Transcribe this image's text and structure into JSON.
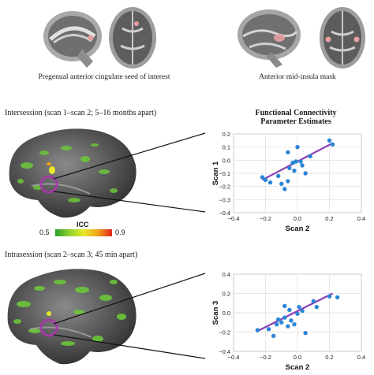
{
  "top": {
    "seed_caption": "Pregenual anterior cingulate seed of interest",
    "mask_caption": "Anterior mid-insula mask"
  },
  "panels": {
    "intersession_title": "Intersession (scan 1–scan 2; 5–16 months apart)",
    "intrasession_title": "Intrasession (scan 2–scan 3; 45 min apart)",
    "fc_title_line1": "Functional Connectivity",
    "fc_title_line2": "Parameter Estimates"
  },
  "colorbar": {
    "label": "ICC",
    "min_label": "0.5",
    "max_label": "0.9",
    "colors": [
      "#2e9e2e",
      "#8fd12e",
      "#e8e82a",
      "#f2a21c",
      "#e0241c"
    ]
  },
  "colors": {
    "points": "#2a86d6",
    "fit_line": "#8a3fb5",
    "highlight_circle": "#a23aa8",
    "brain_dark": "#3c3c3c",
    "brain_light": "#9a9a9a",
    "activation": "#6cc63a"
  },
  "chart_data": [
    {
      "type": "scatter",
      "title": "Functional Connectivity Parameter Estimates",
      "xlabel": "Scan 2",
      "ylabel": "Scan 1",
      "xlim": [
        -0.4,
        0.4
      ],
      "ylim": [
        -0.4,
        0.2
      ],
      "xticks": [
        "−0.4",
        "−0.2",
        "0.0",
        "0.2",
        "0.4"
      ],
      "yticks": [
        "0.2",
        "0.1",
        "0.0",
        "−0.1",
        "−0.2",
        "−0.3",
        "−0.4"
      ],
      "grid": true,
      "points": [
        [
          -0.22,
          -0.13
        ],
        [
          -0.2,
          -0.15
        ],
        [
          -0.17,
          -0.17
        ],
        [
          -0.12,
          -0.12
        ],
        [
          -0.1,
          -0.18
        ],
        [
          -0.08,
          -0.22
        ],
        [
          -0.06,
          -0.16
        ],
        [
          -0.05,
          -0.06
        ],
        [
          -0.03,
          -0.02
        ],
        [
          -0.02,
          -0.08
        ],
        [
          -0.01,
          -0.01
        ],
        [
          0.0,
          0.1
        ],
        [
          0.02,
          -0.01
        ],
        [
          0.03,
          -0.04
        ],
        [
          0.05,
          -0.1
        ],
        [
          -0.06,
          0.06
        ],
        [
          0.08,
          0.03
        ],
        [
          0.2,
          0.15
        ],
        [
          0.22,
          0.12
        ]
      ],
      "fit": [
        [
          -0.22,
          -0.15
        ],
        [
          0.22,
          0.13
        ]
      ]
    },
    {
      "type": "scatter",
      "xlabel": "Scan 2",
      "ylabel": "Scan 3",
      "xlim": [
        -0.4,
        0.4
      ],
      "ylim": [
        -0.4,
        0.4
      ],
      "xticks": [
        "−0.4",
        "−0.2",
        "0.0",
        "0.2",
        "0.4"
      ],
      "yticks": [
        "0.4",
        "0.2",
        "0.0",
        "−0.2",
        "−0.4"
      ],
      "grid": true,
      "points": [
        [
          -0.25,
          -0.18
        ],
        [
          -0.18,
          -0.17
        ],
        [
          -0.15,
          -0.24
        ],
        [
          -0.13,
          -0.12
        ],
        [
          -0.12,
          -0.07
        ],
        [
          -0.1,
          -0.1
        ],
        [
          -0.08,
          -0.05
        ],
        [
          -0.06,
          -0.14
        ],
        [
          -0.05,
          0.03
        ],
        [
          -0.04,
          -0.08
        ],
        [
          -0.02,
          -0.12
        ],
        [
          0.0,
          -0.01
        ],
        [
          0.01,
          0.06
        ],
        [
          0.03,
          0.02
        ],
        [
          0.05,
          -0.21
        ],
        [
          -0.08,
          0.07
        ],
        [
          0.1,
          0.12
        ],
        [
          0.12,
          0.06
        ],
        [
          0.2,
          0.17
        ],
        [
          0.25,
          0.16
        ]
      ],
      "fit": [
        [
          -0.25,
          -0.19
        ],
        [
          0.22,
          0.2
        ]
      ]
    }
  ]
}
